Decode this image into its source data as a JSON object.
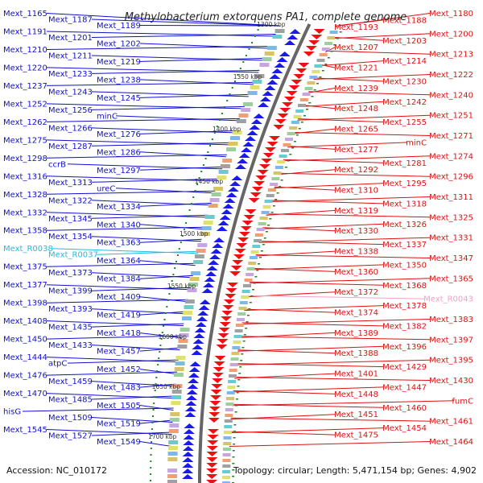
{
  "title": "Methylobacterium extorquens PA1, complete genome",
  "footer": {
    "accession": "Accession: NC_010172",
    "summary": "Topology: circular; Length: 5,471,154 bp; Genes: 4,902"
  },
  "colors": {
    "left_labels": "#1010cc",
    "right_labels": "#dd1111",
    "rna_left": "#22bbdd",
    "rna_right": "#f4a0c8",
    "backbone": "#666666",
    "minus_strand": "#1a1aee",
    "plus_strand": "#ee1111",
    "tick": "#1a8a1a"
  },
  "scale_labels": [
    "1300 kbp",
    "1350 kbp",
    "1400 kbp",
    "1450 kbp",
    "1500 kbp",
    "1550 kbp",
    "1600 kbp",
    "1650 kbp",
    "1700 kbp"
  ],
  "left_labels": [
    "Mext_1165",
    "Mext_1187",
    "Mext_1189",
    "Mext_1191",
    "Mext_1201",
    "Mext_1202",
    "Mext_1210",
    "Mext_1211",
    "Mext_1219",
    "Mext_1220",
    "Mext_1233",
    "Mext_1238",
    "Mext_1237",
    "Mext_1243",
    "Mext_1245",
    "Mext_1252",
    "Mext_1256",
    "minC",
    "Mext_1262",
    "Mext_1266",
    "Mext_1276",
    "Mext_1275",
    "Mext_1287",
    "Mext_1286",
    "Mext_1298",
    "ccrB",
    "Mext_1297",
    "Mext_1316",
    "Mext_1313",
    "ureC",
    "Mext_1328",
    "Mext_1322",
    "Mext_1334",
    "Mext_1332",
    "Mext_1345",
    "Mext_1340",
    "Mext_1358",
    "Mext_1354",
    "Mext_1363",
    "Mext_R0038",
    "Mext_R0037",
    "Mext_1364",
    "Mext_1375",
    "Mext_1373",
    "Mext_1384",
    "Mext_1377",
    "Mext_1399",
    "Mext_1409",
    "Mext_1398",
    "Mext_1393",
    "Mext_1419",
    "Mext_1408",
    "Mext_1435",
    "Mext_1418",
    "Mext_1450",
    "Mext_1433",
    "Mext_1457",
    "Mext_1444",
    "atpC",
    "Mext_1452",
    "Mext_1476",
    "Mext_1459",
    "Mext_1483",
    "Mext_1470",
    "Mext_1485",
    "Mext_1505",
    "hisG",
    "Mext_1509",
    "Mext_1519",
    "Mext_1545",
    "Mext_1527",
    "Mext_1549"
  ],
  "right_labels": [
    "Mext_1180",
    "Mext_1188",
    "Mext_1193",
    "Mext_1200",
    "Mext_1203",
    "Mext_1207",
    "Mext_1213",
    "Mext_1214",
    "Mext_1221",
    "Mext_1222",
    "Mext_1230",
    "Mext_1239",
    "Mext_1240",
    "Mext_1242",
    "Mext_1248",
    "Mext_1251",
    "Mext_1255",
    "Mext_1265",
    "Mext_1271",
    "minC",
    "Mext_1277",
    "Mext_1274",
    "Mext_1281",
    "Mext_1292",
    "Mext_1296",
    "Mext_1295",
    "Mext_1310",
    "Mext_1311",
    "Mext_1318",
    "Mext_1319",
    "Mext_1325",
    "Mext_1326",
    "Mext_1330",
    "Mext_1331",
    "Mext_1337",
    "Mext_1338",
    "Mext_1347",
    "Mext_1350",
    "Mext_1360",
    "Mext_1365",
    "Mext_1368",
    "Mext_1372",
    "Mext_R0043",
    "Mext_1378",
    "Mext_1374",
    "Mext_1383",
    "Mext_1382",
    "Mext_1389",
    "Mext_1397",
    "Mext_1396",
    "Mext_1388",
    "Mext_1395",
    "Mext_1429",
    "Mext_1401",
    "Mext_1430",
    "Mext_1447",
    "Mext_1448",
    "fumC",
    "Mext_1460",
    "Mext_1451",
    "Mext_1461",
    "Mext_1454",
    "Mext_1475",
    "Mext_1464"
  ]
}
